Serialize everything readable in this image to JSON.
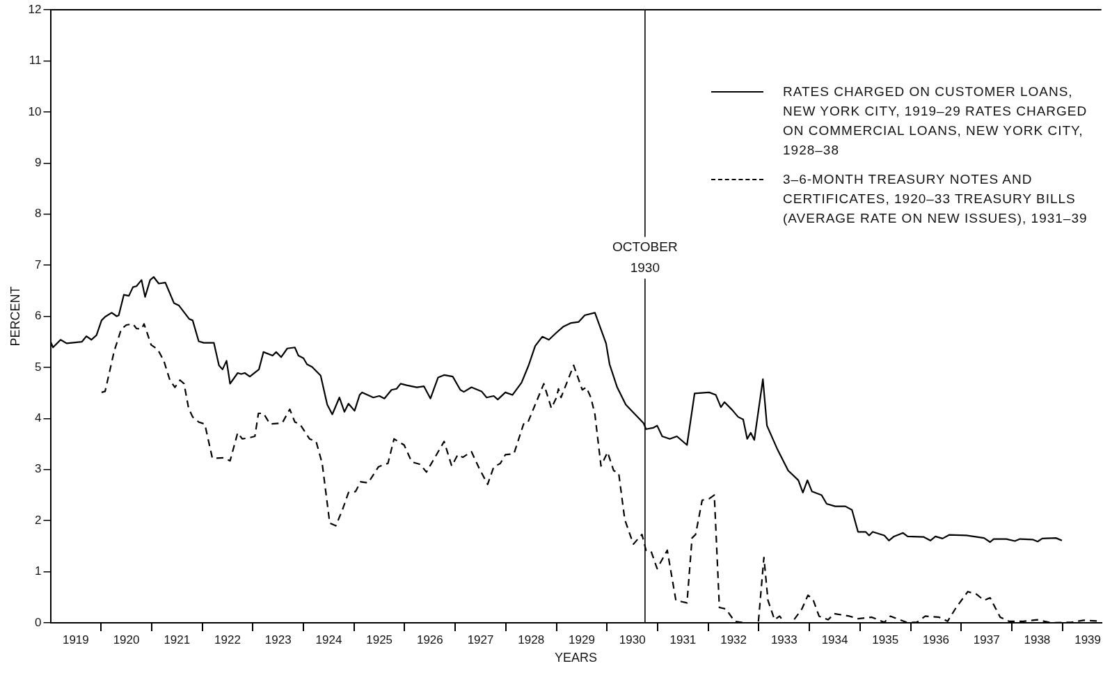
{
  "chart_data": {
    "type": "line",
    "xlabel": "YEARS",
    "ylabel": "PERCENT",
    "xlim": [
      1919,
      1939.77
    ],
    "ylim": [
      0,
      12
    ],
    "xticks": [
      {
        "value": 1919.5,
        "label": "1919"
      },
      {
        "value": 1920,
        "label": null
      },
      {
        "value": 1920.5,
        "label": "1920"
      },
      {
        "value": 1921,
        "label": null
      },
      {
        "value": 1921.5,
        "label": "1921"
      },
      {
        "value": 1922,
        "label": null
      },
      {
        "value": 1922.5,
        "label": "1922"
      },
      {
        "value": 1923,
        "label": null
      },
      {
        "value": 1923.5,
        "label": "1923"
      },
      {
        "value": 1924,
        "label": null
      },
      {
        "value": 1924.5,
        "label": "1924"
      },
      {
        "value": 1925,
        "label": null
      },
      {
        "value": 1925.5,
        "label": "1925"
      },
      {
        "value": 1926,
        "label": null
      },
      {
        "value": 1926.5,
        "label": "1926"
      },
      {
        "value": 1927,
        "label": null
      },
      {
        "value": 1927.5,
        "label": "1927"
      },
      {
        "value": 1928,
        "label": null
      },
      {
        "value": 1928.5,
        "label": "1928"
      },
      {
        "value": 1929,
        "label": null
      },
      {
        "value": 1929.5,
        "label": "1929"
      },
      {
        "value": 1930,
        "label": null
      },
      {
        "value": 1930.5,
        "label": "1930"
      },
      {
        "value": 1931,
        "label": null
      },
      {
        "value": 1931.5,
        "label": "1931"
      },
      {
        "value": 1932,
        "label": null
      },
      {
        "value": 1932.5,
        "label": "1932"
      },
      {
        "value": 1933,
        "label": null
      },
      {
        "value": 1933.5,
        "label": "1933"
      },
      {
        "value": 1934,
        "label": null
      },
      {
        "value": 1934.5,
        "label": "1934"
      },
      {
        "value": 1935,
        "label": null
      },
      {
        "value": 1935.5,
        "label": "1935"
      },
      {
        "value": 1936,
        "label": null
      },
      {
        "value": 1936.5,
        "label": "1936"
      },
      {
        "value": 1937,
        "label": null
      },
      {
        "value": 1937.5,
        "label": "1937"
      },
      {
        "value": 1938,
        "label": null
      },
      {
        "value": 1938.5,
        "label": "1938"
      },
      {
        "value": 1939,
        "label": null
      },
      {
        "value": 1939.5,
        "label": "1939"
      }
    ],
    "yticks": [
      0,
      1,
      2,
      3,
      4,
      5,
      6,
      7,
      8,
      9,
      10,
      11,
      12
    ],
    "grid": false,
    "legend": "top right",
    "marker": "none",
    "ref_lines": [
      {
        "axis": "x",
        "value": 1930.75,
        "label": "OCTOBER 1930"
      }
    ],
    "series": [
      {
        "name": "RATES CHARGED ON CUSTOMER LOANS, NEW YORK CITY, 1919–29 RATES CHARGED ON COMMERCIAL LOANS, NEW YORK CITY, 1928–38",
        "color": "#000000",
        "line_style": "solid",
        "x": [
          1919.0,
          1919.05,
          1919.2,
          1919.32,
          1919.62,
          1919.71,
          1919.81,
          1919.91,
          1920.01,
          1920.08,
          1920.21,
          1920.31,
          1920.35,
          1920.45,
          1920.55,
          1920.63,
          1920.7,
          1920.8,
          1920.87,
          1920.97,
          1921.04,
          1921.14,
          1921.27,
          1921.44,
          1921.54,
          1921.74,
          1921.81,
          1921.93,
          1922.03,
          1922.23,
          1922.33,
          1922.4,
          1922.48,
          1922.55,
          1922.7,
          1922.77,
          1922.84,
          1922.94,
          1923.12,
          1923.21,
          1923.39,
          1923.46,
          1923.56,
          1923.68,
          1923.83,
          1923.9,
          1924.0,
          1924.07,
          1924.17,
          1924.34,
          1924.47,
          1924.57,
          1924.71,
          1924.81,
          1924.89,
          1925.01,
          1925.11,
          1925.16,
          1925.38,
          1925.5,
          1925.6,
          1925.74,
          1925.84,
          1925.92,
          1926.04,
          1926.24,
          1926.38,
          1926.51,
          1926.66,
          1926.78,
          1926.95,
          1927.1,
          1927.17,
          1927.32,
          1927.52,
          1927.62,
          1927.76,
          1927.84,
          1927.99,
          1928.13,
          1928.31,
          1928.45,
          1928.58,
          1928.72,
          1928.85,
          1929.0,
          1929.14,
          1929.29,
          1929.44,
          1929.56,
          1929.76,
          1929.98,
          1930.05,
          1930.2,
          1930.37,
          1930.72,
          1930.77,
          1930.92,
          1930.99,
          1931.09,
          1931.24,
          1931.38,
          1931.58,
          1931.73,
          1932.02,
          1932.15,
          1932.25,
          1932.32,
          1932.47,
          1932.59,
          1932.69,
          1932.77,
          1932.84,
          1932.91,
          1933.08,
          1933.16,
          1933.36,
          1933.58,
          1933.78,
          1933.87,
          1933.96,
          1934.05,
          1934.24,
          1934.34,
          1934.51,
          1934.71,
          1934.84,
          1934.96,
          1935.11,
          1935.18,
          1935.25,
          1935.48,
          1935.57,
          1935.67,
          1935.85,
          1935.94,
          1936.26,
          1936.39,
          1936.49,
          1936.63,
          1936.76,
          1937.1,
          1937.45,
          1937.57,
          1937.64,
          1937.89,
          1938.06,
          1938.16,
          1938.41,
          1938.51,
          1938.6,
          1938.87,
          1938.99
        ],
        "values": [
          5.51,
          5.39,
          5.54,
          5.47,
          5.5,
          5.61,
          5.54,
          5.63,
          5.92,
          5.99,
          6.07,
          6.0,
          6.02,
          6.42,
          6.4,
          6.57,
          6.59,
          6.71,
          6.38,
          6.71,
          6.77,
          6.64,
          6.66,
          6.26,
          6.21,
          5.95,
          5.92,
          5.51,
          5.48,
          5.48,
          5.04,
          4.96,
          5.13,
          4.68,
          4.89,
          4.87,
          4.89,
          4.82,
          4.96,
          5.3,
          5.23,
          5.3,
          5.2,
          5.37,
          5.39,
          5.23,
          5.18,
          5.06,
          5.01,
          4.84,
          4.27,
          4.08,
          4.41,
          4.13,
          4.29,
          4.15,
          4.46,
          4.51,
          4.41,
          4.44,
          4.39,
          4.56,
          4.58,
          4.68,
          4.65,
          4.61,
          4.63,
          4.39,
          4.8,
          4.85,
          4.82,
          4.56,
          4.52,
          4.61,
          4.53,
          4.41,
          4.44,
          4.37,
          4.51,
          4.46,
          4.7,
          5.04,
          5.42,
          5.6,
          5.54,
          5.68,
          5.8,
          5.87,
          5.89,
          6.02,
          6.07,
          5.47,
          5.06,
          4.61,
          4.27,
          3.91,
          3.79,
          3.82,
          3.86,
          3.65,
          3.6,
          3.65,
          3.48,
          4.49,
          4.51,
          4.46,
          4.22,
          4.32,
          4.17,
          4.03,
          3.98,
          3.6,
          3.72,
          3.58,
          4.77,
          3.86,
          3.41,
          2.98,
          2.79,
          2.55,
          2.79,
          2.57,
          2.5,
          2.33,
          2.28,
          2.28,
          2.21,
          1.78,
          1.78,
          1.71,
          1.78,
          1.71,
          1.61,
          1.69,
          1.76,
          1.69,
          1.68,
          1.61,
          1.69,
          1.65,
          1.72,
          1.71,
          1.66,
          1.58,
          1.64,
          1.64,
          1.6,
          1.64,
          1.63,
          1.59,
          1.65,
          1.66,
          1.61
        ]
      },
      {
        "name": "3–6-MONTH TREASURY NOTES AND CERTIFICATES, 1920–33 TREASURY BILLS (AVERAGE RATE ON NEW ISSUES), 1931–39",
        "color": "#000000",
        "line_style": "dashed",
        "x": [
          1920.01,
          1920.08,
          1920.26,
          1920.4,
          1920.5,
          1920.63,
          1920.7,
          1920.8,
          1920.85,
          1920.99,
          1921.12,
          1921.24,
          1921.36,
          1921.46,
          1921.56,
          1921.64,
          1921.73,
          1921.81,
          1921.93,
          1922.05,
          1922.2,
          1922.42,
          1922.55,
          1922.7,
          1922.79,
          1922.92,
          1923.04,
          1923.11,
          1923.21,
          1923.34,
          1923.58,
          1923.73,
          1923.83,
          1923.93,
          1924.12,
          1924.25,
          1924.37,
          1924.52,
          1924.64,
          1924.77,
          1924.89,
          1925.03,
          1925.13,
          1925.28,
          1925.48,
          1925.6,
          1925.67,
          1925.79,
          1925.99,
          1926.14,
          1926.31,
          1926.43,
          1926.78,
          1926.93,
          1927.05,
          1927.15,
          1927.32,
          1927.47,
          1927.64,
          1927.76,
          1927.89,
          1927.99,
          1928.16,
          1928.35,
          1928.43,
          1928.75,
          1928.9,
          1929.0,
          1929.04,
          1929.09,
          1929.34,
          1929.51,
          1929.59,
          1929.68,
          1929.76,
          1929.88,
          1930.01,
          1930.13,
          1930.23,
          1930.35,
          1930.52,
          1930.69,
          1930.77,
          1930.87,
          1930.99,
          1931.19,
          1931.36,
          1931.58,
          1931.68,
          1931.75,
          1931.88,
          1932.02,
          1932.12,
          1932.22,
          1932.35,
          1932.52,
          1932.72,
          1932.91,
          1932.99,
          1933.1,
          1933.18,
          1933.31,
          1933.41,
          1933.51,
          1933.65,
          1933.85,
          1933.97,
          1934.07,
          1934.19,
          1934.37,
          1934.49,
          1934.79,
          1934.96,
          1935.23,
          1935.48,
          1935.6,
          1935.92,
          1936.12,
          1936.29,
          1936.56,
          1936.73,
          1936.9,
          1937.13,
          1937.3,
          1937.45,
          1937.57,
          1937.77,
          1937.94,
          1938.23,
          1938.5,
          1938.78,
          1939.17,
          1939.42,
          1939.76
        ],
        "values": [
          4.51,
          4.53,
          5.32,
          5.75,
          5.83,
          5.85,
          5.76,
          5.75,
          5.85,
          5.44,
          5.35,
          5.13,
          4.75,
          4.61,
          4.75,
          4.68,
          4.2,
          4.03,
          3.93,
          3.89,
          3.22,
          3.23,
          3.17,
          3.72,
          3.6,
          3.62,
          3.65,
          4.1,
          4.1,
          3.89,
          3.91,
          4.18,
          3.93,
          3.89,
          3.6,
          3.55,
          3.12,
          1.95,
          1.9,
          2.21,
          2.55,
          2.57,
          2.76,
          2.74,
          3.05,
          3.1,
          3.12,
          3.6,
          3.48,
          3.15,
          3.1,
          2.95,
          3.55,
          3.07,
          3.29,
          3.24,
          3.35,
          3.03,
          2.71,
          3.05,
          3.12,
          3.29,
          3.31,
          3.89,
          3.91,
          4.68,
          4.2,
          4.41,
          4.58,
          4.41,
          5.04,
          4.56,
          4.61,
          4.41,
          4.08,
          3.07,
          3.34,
          2.98,
          2.93,
          2.02,
          1.54,
          1.73,
          1.42,
          1.4,
          1.06,
          1.42,
          0.44,
          0.39,
          1.66,
          1.73,
          2.4,
          2.43,
          2.5,
          0.3,
          0.27,
          0.03,
          0,
          0,
          0.01,
          1.28,
          0.44,
          0.06,
          0.13,
          0,
          0,
          0.27,
          0.54,
          0.46,
          0.13,
          0.06,
          0.18,
          0.13,
          0.08,
          0.11,
          0.01,
          0.13,
          0.01,
          0.01,
          0.13,
          0.11,
          0.03,
          0.3,
          0.61,
          0.56,
          0.44,
          0.49,
          0.11,
          0.03,
          0.03,
          0.06,
          0,
          0.01,
          0.05,
          0.03
        ]
      }
    ]
  }
}
